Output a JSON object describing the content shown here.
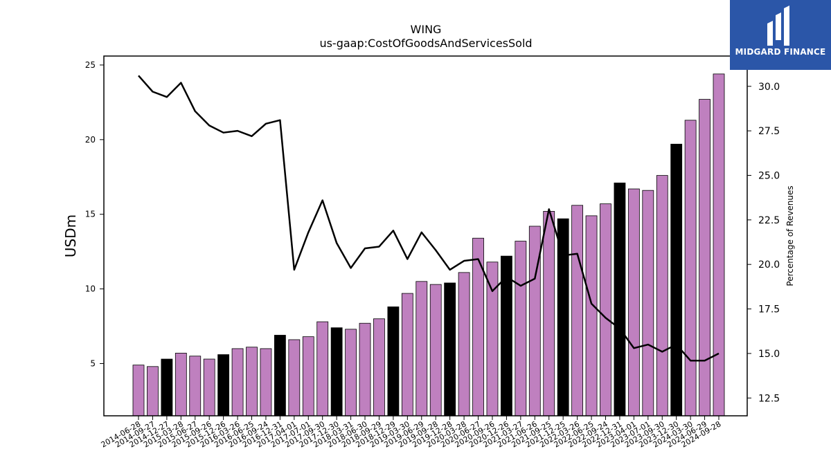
{
  "logo": {
    "text": "MIDGARD FINANCE",
    "color": "#2b56a8"
  },
  "chart_data": {
    "type": "bar",
    "title": "WING",
    "subtitle": "us-gaap:CostOfGoodsAndServicesSold",
    "ylabel": "USDm",
    "y2label": "Percentage of Revenues",
    "ylim": [
      1.5,
      25.6
    ],
    "y2lim": [
      11.5,
      31.7
    ],
    "yticks": [
      5,
      10,
      15,
      20,
      25
    ],
    "y2ticks": [
      12.5,
      15.0,
      17.5,
      20.0,
      22.5,
      25.0,
      27.5,
      30.0
    ],
    "colors": {
      "quarter": "#bf80bf",
      "fiscal_year_end": "#000000",
      "line": "#000000"
    },
    "categories": [
      "2014-06-28",
      "2014-09-27",
      "2014-12-27",
      "2015-03-28",
      "2015-06-27",
      "2015-09-26",
      "2015-12-26",
      "2016-03-26",
      "2016-06-25",
      "2016-09-24",
      "2016-12-31",
      "2017-04-01",
      "2017-07-01",
      "2017-09-30",
      "2017-12-30",
      "2018-03-31",
      "2018-06-30",
      "2018-09-29",
      "2018-12-29",
      "2019-03-30",
      "2019-06-29",
      "2019-09-28",
      "2019-12-28",
      "2020-03-28",
      "2020-06-27",
      "2020-09-26",
      "2020-12-26",
      "2021-03-27",
      "2021-06-26",
      "2021-09-25",
      "2021-12-25",
      "2022-03-26",
      "2022-06-25",
      "2022-09-24",
      "2022-12-31",
      "2023-04-01",
      "2023-07-01",
      "2023-09-30",
      "2023-12-30",
      "2024-03-30",
      "2024-06-29",
      "2024-09-28"
    ],
    "series": [
      {
        "type": "bar",
        "values": [
          4.9,
          4.8,
          5.3,
          5.7,
          5.5,
          5.3,
          5.6,
          6.0,
          6.1,
          6.0,
          6.9,
          6.6,
          6.8,
          7.8,
          7.4,
          7.3,
          7.7,
          8.0,
          8.8,
          9.7,
          10.5,
          10.3,
          10.4,
          11.1,
          13.4,
          11.8,
          12.2,
          13.2,
          14.2,
          15.2,
          14.7,
          15.6,
          14.9,
          15.7,
          17.1,
          16.7,
          16.6,
          17.6,
          19.7,
          21.3,
          22.7,
          24.4
        ],
        "fiscal_year_end": [
          false,
          false,
          true,
          false,
          false,
          false,
          true,
          false,
          false,
          false,
          true,
          false,
          false,
          false,
          true,
          false,
          false,
          false,
          true,
          false,
          false,
          false,
          true,
          false,
          false,
          false,
          true,
          false,
          false,
          false,
          true,
          false,
          false,
          false,
          true,
          false,
          false,
          false,
          true,
          false,
          false,
          false
        ]
      },
      {
        "type": "line",
        "axis": "right",
        "values": [
          30.6,
          29.7,
          29.4,
          30.2,
          28.6,
          27.8,
          27.4,
          27.5,
          27.2,
          27.9,
          28.1,
          19.7,
          21.8,
          23.6,
          21.2,
          19.8,
          20.9,
          21.0,
          21.9,
          20.3,
          21.8,
          20.8,
          19.7,
          20.2,
          20.3,
          18.5,
          19.3,
          18.8,
          19.2,
          23.1,
          20.5,
          20.6,
          17.8,
          17.0,
          16.4,
          15.3,
          15.5,
          15.1,
          15.5,
          14.6,
          14.6,
          15.0
        ]
      }
    ]
  }
}
